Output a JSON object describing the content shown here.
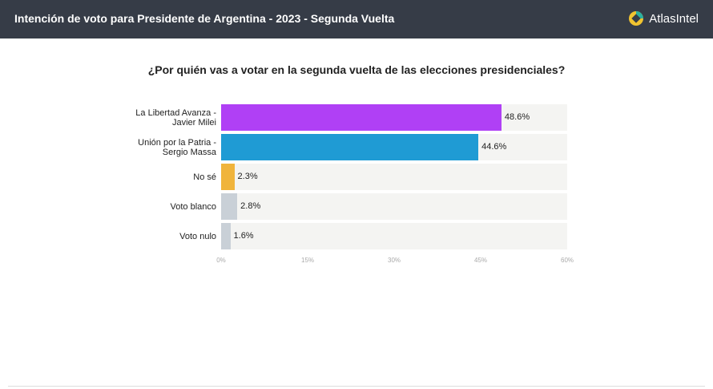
{
  "header": {
    "title": "Intención de voto para Presidente de Argentina - 2023 - Segunda Vuelta",
    "logo": "AtlasIntel"
  },
  "chart_data": {
    "type": "bar",
    "title": "¿Por quién vas a votar en la segunda vuelta de las elecciones presidenciales?",
    "categories": [
      "La Libertad Avanza - Javier Milei",
      "Unión por la Patria - Sergio Massa",
      "No sé",
      "Voto blanco",
      "Voto nulo"
    ],
    "values": [
      48.6,
      44.6,
      2.3,
      2.8,
      1.6
    ],
    "value_labels": [
      "48.6%",
      "44.6%",
      "2.3%",
      "2.8%",
      "1.6%"
    ],
    "colors": [
      "#b040f5",
      "#1f9bd4",
      "#f0b43c",
      "#c9d0d7",
      "#c9d0d7"
    ],
    "xlim": [
      0,
      60
    ],
    "xticks": [
      {
        "value": 0,
        "label": "0%"
      },
      {
        "value": 15,
        "label": "15%"
      },
      {
        "value": 30,
        "label": "30%"
      },
      {
        "value": 45,
        "label": "45%"
      },
      {
        "value": 60,
        "label": "60%"
      }
    ]
  }
}
